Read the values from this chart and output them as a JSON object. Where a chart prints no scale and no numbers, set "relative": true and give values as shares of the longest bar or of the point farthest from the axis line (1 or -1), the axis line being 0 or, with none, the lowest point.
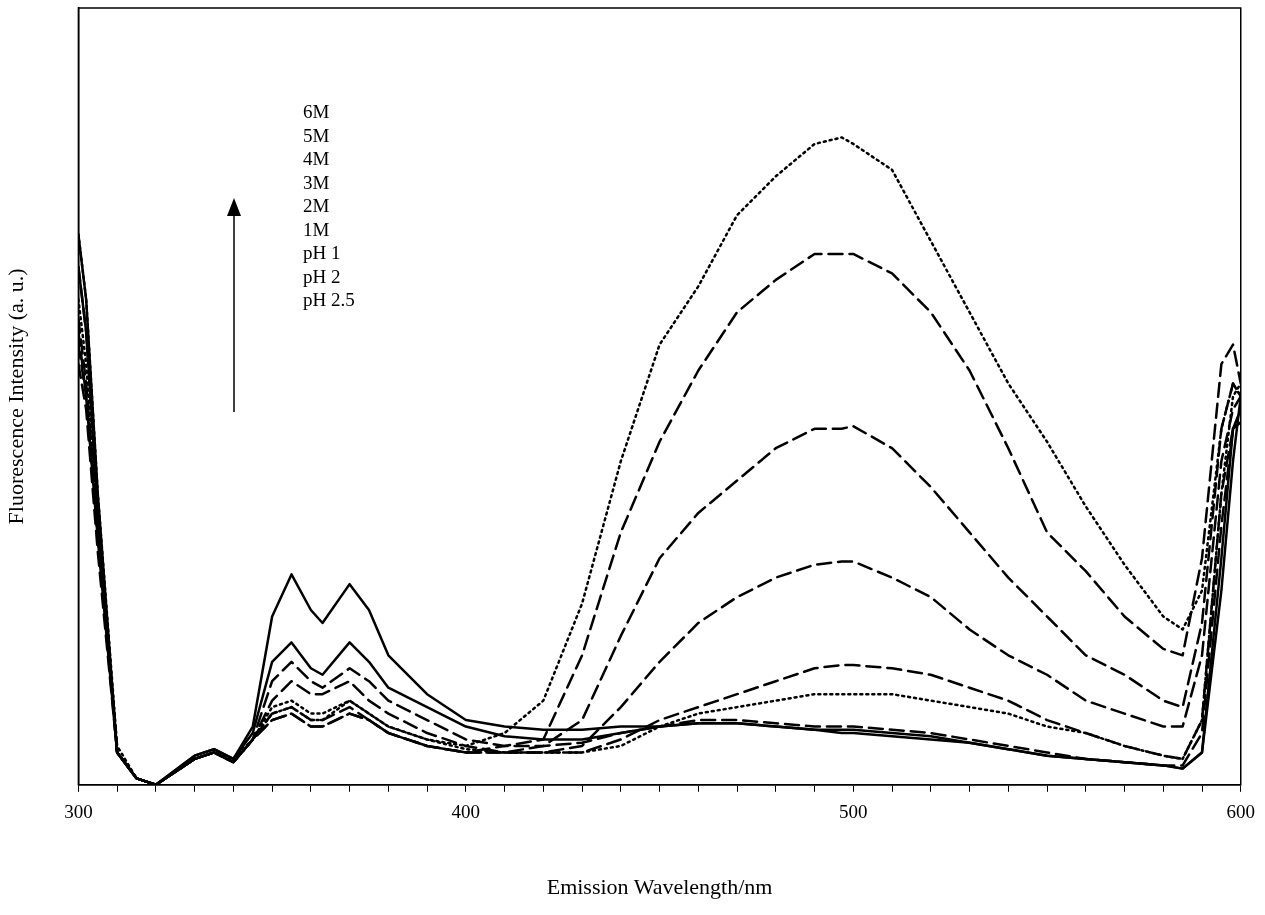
{
  "chart_data": {
    "type": "line",
    "xlabel": "Emission Wavelength/nm",
    "ylabel": "Fluorescence Intensity (a. u.)",
    "relative": true,
    "grid": false,
    "legend": false,
    "marker": "none",
    "x": [
      300,
      302,
      305,
      310,
      315,
      320,
      330,
      335,
      340,
      345,
      350,
      355,
      360,
      363,
      370,
      375,
      380,
      390,
      400,
      410,
      420,
      430,
      440,
      450,
      460,
      470,
      480,
      490,
      497,
      500,
      510,
      520,
      530,
      540,
      550,
      560,
      570,
      580,
      585,
      590,
      595,
      598,
      600
    ],
    "xlim": [
      300,
      600
    ],
    "xticks": [
      300,
      {
        "value": 310,
        "label": null
      },
      {
        "value": 320,
        "label": null
      },
      {
        "value": 330,
        "label": null
      },
      {
        "value": 340,
        "label": null
      },
      {
        "value": 350,
        "label": null
      },
      {
        "value": 360,
        "label": null
      },
      {
        "value": 370,
        "label": null
      },
      {
        "value": 380,
        "label": null
      },
      {
        "value": 390,
        "label": null
      },
      400,
      {
        "value": 410,
        "label": null
      },
      {
        "value": 420,
        "label": null
      },
      {
        "value": 430,
        "label": null
      },
      {
        "value": 440,
        "label": null
      },
      {
        "value": 450,
        "label": null
      },
      {
        "value": 460,
        "label": null
      },
      {
        "value": 470,
        "label": null
      },
      {
        "value": 480,
        "label": null
      },
      {
        "value": 490,
        "label": null
      },
      500,
      {
        "value": 510,
        "label": null
      },
      {
        "value": 520,
        "label": null
      },
      {
        "value": 530,
        "label": null
      },
      {
        "value": 540,
        "label": null
      },
      {
        "value": 550,
        "label": null
      },
      {
        "value": 560,
        "label": null
      },
      {
        "value": 570,
        "label": null
      },
      {
        "value": 580,
        "label": null
      },
      {
        "value": 590,
        "label": null
      },
      600
    ],
    "annotations": [
      "6M",
      "5M",
      "4M",
      "3M",
      "2M",
      "1M",
      "pH 1",
      "pH 2",
      "pH 2.5"
    ],
    "series": [
      {
        "color": "#000000",
        "line_style": "dotted",
        "values": [
          0.85,
          0.75,
          0.45,
          0.06,
          0.01,
          0,
          0.04,
          0.05,
          0.04,
          0.07,
          0.12,
          0.13,
          0.11,
          0.11,
          0.13,
          0.11,
          0.09,
          0.07,
          0.06,
          0.08,
          0.13,
          0.28,
          0.5,
          0.68,
          0.77,
          0.88,
          0.94,
          0.99,
          1.0,
          0.99,
          0.95,
          0.84,
          0.73,
          0.62,
          0.53,
          0.43,
          0.34,
          0.26,
          0.24,
          0.3,
          0.55,
          0.62,
          0.6
        ]
      },
      {
        "color": "#000000",
        "line_style": "dashed",
        "values": [
          0.72,
          0.62,
          0.4,
          0.05,
          0.01,
          0,
          0.04,
          0.05,
          0.035,
          0.07,
          0.11,
          0.12,
          0.1,
          0.1,
          0.12,
          0.1,
          0.08,
          0.06,
          0.05,
          0.06,
          0.07,
          0.2,
          0.39,
          0.53,
          0.64,
          0.73,
          0.78,
          0.82,
          0.82,
          0.82,
          0.79,
          0.73,
          0.64,
          0.52,
          0.39,
          0.33,
          0.26,
          0.21,
          0.2,
          0.35,
          0.65,
          0.68,
          0.62
        ]
      },
      {
        "color": "#000000",
        "line_style": "dashed",
        "values": [
          0.68,
          0.6,
          0.38,
          0.05,
          0.01,
          0,
          0.04,
          0.05,
          0.035,
          0.07,
          0.1,
          0.11,
          0.09,
          0.09,
          0.11,
          0.1,
          0.08,
          0.06,
          0.05,
          0.05,
          0.06,
          0.1,
          0.23,
          0.35,
          0.42,
          0.47,
          0.52,
          0.55,
          0.55,
          0.554,
          0.52,
          0.46,
          0.39,
          0.32,
          0.26,
          0.2,
          0.17,
          0.13,
          0.12,
          0.25,
          0.55,
          0.62,
          0.6
        ]
      },
      {
        "color": "#000000",
        "line_style": "dashed",
        "values": [
          0.65,
          0.58,
          0.36,
          0.05,
          0.01,
          0,
          0.04,
          0.05,
          0.035,
          0.07,
          0.1,
          0.11,
          0.09,
          0.09,
          0.11,
          0.1,
          0.08,
          0.06,
          0.05,
          0.05,
          0.05,
          0.06,
          0.12,
          0.19,
          0.25,
          0.29,
          0.32,
          0.34,
          0.345,
          0.345,
          0.32,
          0.29,
          0.24,
          0.2,
          0.17,
          0.13,
          0.11,
          0.09,
          0.09,
          0.2,
          0.5,
          0.58,
          0.6
        ]
      },
      {
        "color": "#000000",
        "line_style": "dashed",
        "values": [
          0.7,
          0.6,
          0.38,
          0.05,
          0.01,
          0,
          0.04,
          0.05,
          0.035,
          0.07,
          0.13,
          0.16,
          0.14,
          0.14,
          0.16,
          0.13,
          0.11,
          0.08,
          0.06,
          0.05,
          0.05,
          0.05,
          0.07,
          0.1,
          0.12,
          0.14,
          0.16,
          0.18,
          0.185,
          0.185,
          0.18,
          0.17,
          0.15,
          0.13,
          0.1,
          0.08,
          0.06,
          0.045,
          0.04,
          0.1,
          0.45,
          0.55,
          0.56
        ]
      },
      {
        "color": "#000000",
        "line_style": "dotted",
        "values": [
          0.75,
          0.65,
          0.4,
          0.05,
          0.01,
          0,
          0.04,
          0.05,
          0.035,
          0.07,
          0.11,
          0.12,
          0.1,
          0.1,
          0.13,
          0.11,
          0.09,
          0.07,
          0.055,
          0.05,
          0.05,
          0.05,
          0.06,
          0.09,
          0.11,
          0.12,
          0.13,
          0.14,
          0.14,
          0.14,
          0.14,
          0.13,
          0.12,
          0.11,
          0.09,
          0.08,
          0.06,
          0.045,
          0.04,
          0.1,
          0.45,
          0.6,
          0.62
        ]
      },
      {
        "color": "#000000",
        "line_style": "dashed",
        "values": [
          0.8,
          0.7,
          0.42,
          0.05,
          0.01,
          0,
          0.04,
          0.05,
          0.035,
          0.07,
          0.16,
          0.19,
          0.16,
          0.15,
          0.18,
          0.16,
          0.13,
          0.1,
          0.07,
          0.06,
          0.06,
          0.065,
          0.08,
          0.09,
          0.1,
          0.1,
          0.095,
          0.09,
          0.09,
          0.09,
          0.085,
          0.08,
          0.07,
          0.06,
          0.05,
          0.04,
          0.035,
          0.03,
          0.03,
          0.08,
          0.4,
          0.55,
          0.56
        ]
      },
      {
        "color": "#000000",
        "line_style": "solid",
        "values": [
          0.85,
          0.75,
          0.45,
          0.05,
          0.01,
          0,
          0.045,
          0.055,
          0.04,
          0.08,
          0.19,
          0.22,
          0.18,
          0.17,
          0.22,
          0.19,
          0.15,
          0.12,
          0.09,
          0.075,
          0.07,
          0.07,
          0.08,
          0.09,
          0.095,
          0.095,
          0.09,
          0.085,
          0.085,
          0.085,
          0.08,
          0.075,
          0.065,
          0.055,
          0.045,
          0.04,
          0.035,
          0.03,
          0.025,
          0.05,
          0.35,
          0.55,
          0.58
        ]
      },
      {
        "color": "#000000",
        "line_style": "solid",
        "values": [
          0.8,
          0.7,
          0.43,
          0.05,
          0.01,
          0,
          0.045,
          0.055,
          0.04,
          0.09,
          0.26,
          0.325,
          0.27,
          0.25,
          0.31,
          0.27,
          0.2,
          0.14,
          0.1,
          0.09,
          0.085,
          0.085,
          0.09,
          0.09,
          0.095,
          0.095,
          0.09,
          0.085,
          0.08,
          0.08,
          0.075,
          0.07,
          0.065,
          0.055,
          0.045,
          0.04,
          0.035,
          0.03,
          0.025,
          0.05,
          0.3,
          0.5,
          0.6
        ]
      }
    ]
  }
}
